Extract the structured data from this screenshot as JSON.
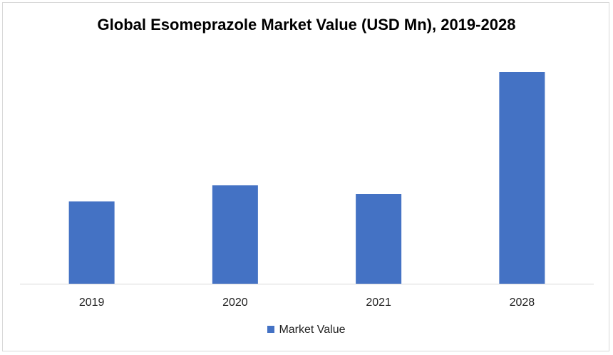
{
  "chart_data": {
    "type": "bar",
    "title": "Global Esomeprazole Market Value (USD Mn), 2019-2028",
    "categories": [
      "2019",
      "2020",
      "2021",
      "2028"
    ],
    "series": [
      {
        "name": "Market Value",
        "values": [
          38.5,
          46,
          42,
          99
        ]
      }
    ],
    "ylim": [
      0,
      100
    ],
    "xlabel": "",
    "ylabel": "",
    "grid": false,
    "legend_position": "bottom",
    "colors": {
      "bar": "#4472c4",
      "axis": "#d9d9d9"
    }
  }
}
